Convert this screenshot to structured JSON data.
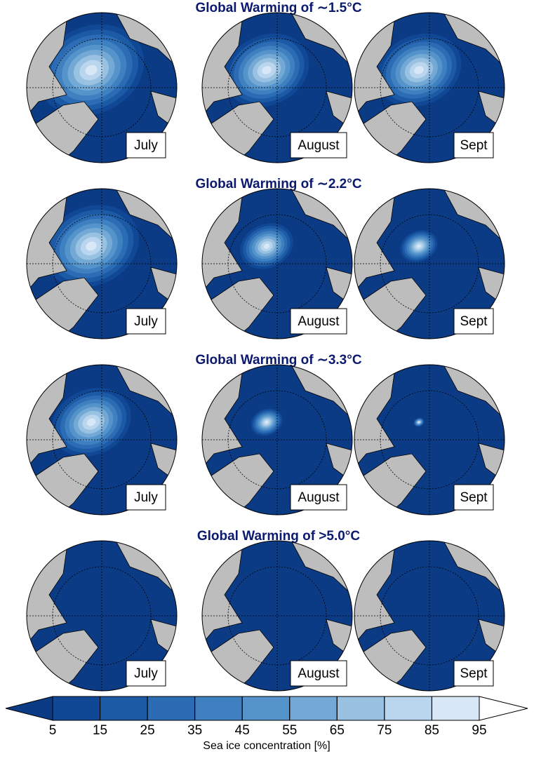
{
  "rows": [
    {
      "title": "Global Warming of ∼1.5°C",
      "months": [
        "July",
        "August",
        "Sept"
      ]
    },
    {
      "title": "Global Warming of ∼2.2°C",
      "months": [
        "July",
        "August",
        "Sept"
      ]
    },
    {
      "title": "Global Warming of ∼3.3°C",
      "months": [
        "July",
        "August",
        "Sept"
      ]
    },
    {
      "title": "Global Warming of >5.0°C",
      "months": [
        "July",
        "August",
        "Sept"
      ]
    }
  ],
  "colorbar": {
    "label": "Sea ice concentration [%]",
    "ticks": [
      5,
      15,
      25,
      35,
      45,
      55,
      65,
      75,
      85,
      95
    ],
    "colors": [
      "#0c3b85",
      "#114896",
      "#1c5aa6",
      "#2b6cb4",
      "#3f80c0",
      "#5593cb",
      "#74a9d6",
      "#98c1e2",
      "#bad6ee",
      "#d8e8f6",
      "#ffffff"
    ]
  }
}
